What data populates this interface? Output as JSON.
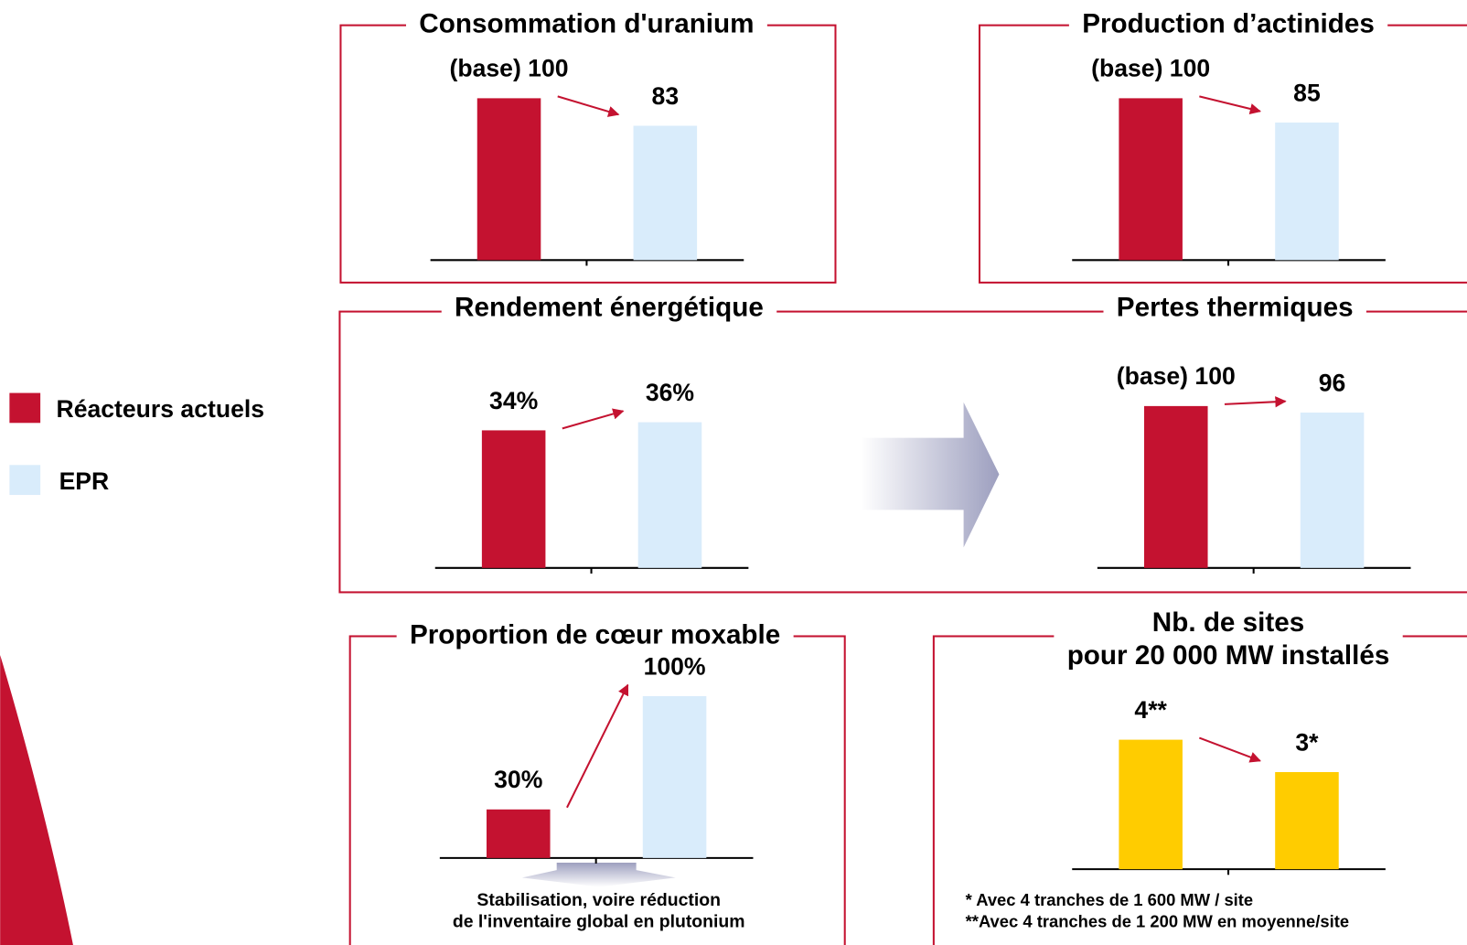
{
  "legend": [
    {
      "name": "Réacteurs actuels",
      "color": "#c41230"
    },
    {
      "name": "EPR",
      "color": "#d9ecfb"
    }
  ],
  "chart_data": [
    {
      "type": "bar",
      "title": "Consommation d'uranium",
      "values": [
        100,
        83
      ],
      "value_labels": [
        "(base) 100",
        "83"
      ],
      "ylim": [
        0,
        100
      ]
    },
    {
      "type": "bar",
      "title": "Production d’actinides",
      "values": [
        100,
        85
      ],
      "value_labels": [
        "(base) 100",
        "85"
      ],
      "ylim": [
        0,
        100
      ]
    },
    {
      "type": "bar",
      "title": "Rendement énergétique",
      "values": [
        34,
        36
      ],
      "value_labels": [
        "34%",
        "36%"
      ],
      "ylim": [
        0,
        40
      ]
    },
    {
      "type": "bar",
      "title": "Pertes thermiques",
      "values": [
        100,
        96
      ],
      "value_labels": [
        "(base) 100",
        "96"
      ],
      "ylim": [
        0,
        100
      ]
    },
    {
      "type": "bar",
      "title": "Proportion de cœur moxable",
      "values": [
        30,
        100
      ],
      "value_labels": [
        "30%",
        "100%"
      ],
      "ylim": [
        0,
        100
      ],
      "annotations": [
        "Stabilisation, voire réduction",
        "de l'inventaire global en plutonium"
      ]
    },
    {
      "type": "bar",
      "title": "Nb. de sites",
      "subtitle": "pour 20 000 MW installés",
      "values": [
        4,
        3
      ],
      "value_labels": [
        "4**",
        "3*"
      ],
      "color": "#ffcc00",
      "ylim": [
        0,
        5
      ],
      "annotations": [
        "* Avec 4 tranches de 1 600 MW / site",
        "**Avec 4 tranches de 1 200 MW en moyenne/site"
      ]
    }
  ]
}
